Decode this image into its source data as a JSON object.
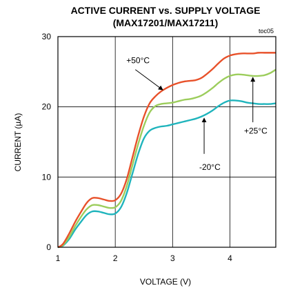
{
  "chart_data": {
    "type": "line",
    "title": "ACTIVE CURRENT vs. SUPPLY VOLTAGE",
    "subtitle": "(MAX17201/MAX17211)",
    "tag": "toc05",
    "xlabel": "VOLTAGE (V)",
    "ylabel": "CURRENT (µA)",
    "xlim": [
      1,
      4.8
    ],
    "ylim": [
      0,
      30
    ],
    "xticks": [
      1,
      2,
      3,
      4
    ],
    "yticks": [
      0,
      10,
      20,
      30
    ],
    "grid": true,
    "series": [
      {
        "name": "+50°C",
        "color": "#e8512a",
        "x": [
          1.0,
          1.05,
          1.1,
          1.2,
          1.3,
          1.4,
          1.5,
          1.6,
          1.7,
          1.8,
          1.9,
          2.0,
          2.1,
          2.2,
          2.3,
          2.4,
          2.5,
          2.6,
          2.7,
          2.8,
          2.9,
          3.0,
          3.1,
          3.2,
          3.3,
          3.4,
          3.5,
          3.6,
          3.7,
          3.8,
          3.9,
          4.0,
          4.1,
          4.2,
          4.3,
          4.4,
          4.5,
          4.6,
          4.7,
          4.8
        ],
        "y": [
          0.0,
          0.2,
          0.6,
          2.0,
          3.6,
          5.0,
          6.3,
          7.0,
          7.0,
          6.8,
          6.6,
          6.7,
          7.6,
          9.7,
          12.8,
          15.9,
          18.6,
          20.5,
          21.5,
          22.2,
          22.7,
          23.1,
          23.4,
          23.6,
          23.7,
          23.8,
          24.1,
          24.7,
          25.4,
          26.2,
          26.9,
          27.3,
          27.5,
          27.6,
          27.6,
          27.6,
          27.7,
          27.7,
          27.7,
          27.7
        ]
      },
      {
        "name": "+25°C",
        "color": "#9ccd5c",
        "x": [
          1.0,
          1.05,
          1.1,
          1.2,
          1.3,
          1.4,
          1.5,
          1.6,
          1.7,
          1.8,
          1.9,
          2.0,
          2.1,
          2.2,
          2.3,
          2.4,
          2.5,
          2.6,
          2.7,
          2.8,
          2.9,
          3.0,
          3.1,
          3.2,
          3.3,
          3.4,
          3.5,
          3.6,
          3.7,
          3.8,
          3.9,
          4.0,
          4.1,
          4.2,
          4.3,
          4.4,
          4.5,
          4.6,
          4.7,
          4.8
        ],
        "y": [
          0.0,
          0.1,
          0.4,
          1.5,
          3.0,
          4.3,
          5.4,
          6.0,
          6.0,
          5.8,
          5.6,
          5.7,
          6.6,
          8.7,
          11.7,
          14.7,
          17.3,
          19.2,
          20.1,
          20.4,
          20.5,
          20.6,
          20.8,
          21.0,
          21.1,
          21.3,
          21.6,
          22.1,
          22.7,
          23.4,
          24.0,
          24.4,
          24.6,
          24.6,
          24.5,
          24.4,
          24.4,
          24.5,
          24.8,
          25.3
        ]
      },
      {
        "name": "-20°C",
        "color": "#1fb4bc",
        "x": [
          1.0,
          1.05,
          1.1,
          1.2,
          1.3,
          1.4,
          1.5,
          1.6,
          1.7,
          1.8,
          1.9,
          2.0,
          2.1,
          2.2,
          2.3,
          2.4,
          2.5,
          2.6,
          2.7,
          2.8,
          2.9,
          3.0,
          3.1,
          3.2,
          3.3,
          3.4,
          3.5,
          3.6,
          3.7,
          3.8,
          3.9,
          4.0,
          4.1,
          4.2,
          4.3,
          4.4,
          4.5,
          4.6,
          4.7,
          4.8
        ],
        "y": [
          0.0,
          0.1,
          0.3,
          1.2,
          2.5,
          3.6,
          4.6,
          5.1,
          5.1,
          4.9,
          4.7,
          4.8,
          5.7,
          7.7,
          10.5,
          13.3,
          15.5,
          16.6,
          17.0,
          17.2,
          17.3,
          17.5,
          17.7,
          17.9,
          18.1,
          18.3,
          18.6,
          19.0,
          19.5,
          20.1,
          20.6,
          20.9,
          20.9,
          20.8,
          20.6,
          20.5,
          20.4,
          20.4,
          20.4,
          20.5
        ]
      }
    ],
    "annotations": [
      {
        "text": "+50°C",
        "series": 0
      },
      {
        "text": "+25°C",
        "series": 1
      },
      {
        "text": "-20°C",
        "series": 2
      }
    ]
  }
}
